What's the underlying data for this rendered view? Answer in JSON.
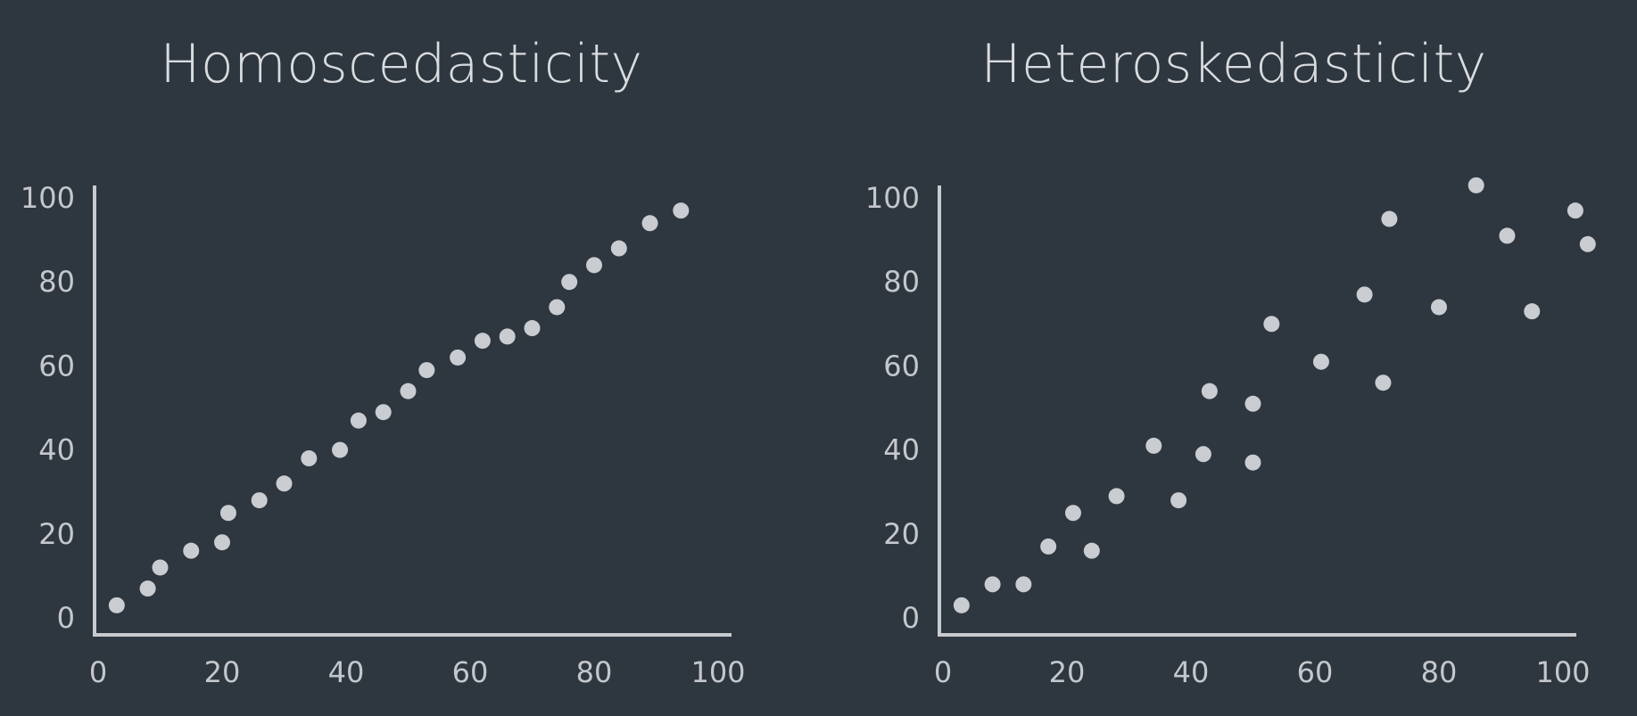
{
  "colors": {
    "background": "#2e3640",
    "axis": "#c8cbce",
    "point": "#c9ccd0",
    "text": "#c4c7cb",
    "title": "#d9dcdf"
  },
  "chart_data": [
    {
      "type": "scatter",
      "title": "Homoscedasticity",
      "xlabel": "",
      "ylabel": "",
      "xlim": [
        0,
        100
      ],
      "ylim": [
        0,
        100
      ],
      "xticks": [
        "0",
        "20",
        "40",
        "60",
        "80",
        "100"
      ],
      "yticks": [
        "0",
        "20",
        "40",
        "60",
        "80",
        "100"
      ],
      "grid": false,
      "points": [
        {
          "x": 3,
          "y": 3
        },
        {
          "x": 8,
          "y": 7
        },
        {
          "x": 10,
          "y": 12
        },
        {
          "x": 15,
          "y": 16
        },
        {
          "x": 20,
          "y": 18
        },
        {
          "x": 21,
          "y": 25
        },
        {
          "x": 26,
          "y": 28
        },
        {
          "x": 30,
          "y": 32
        },
        {
          "x": 34,
          "y": 38
        },
        {
          "x": 39,
          "y": 40
        },
        {
          "x": 42,
          "y": 47
        },
        {
          "x": 46,
          "y": 49
        },
        {
          "x": 50,
          "y": 54
        },
        {
          "x": 53,
          "y": 59
        },
        {
          "x": 58,
          "y": 62
        },
        {
          "x": 62,
          "y": 66
        },
        {
          "x": 66,
          "y": 67
        },
        {
          "x": 70,
          "y": 69
        },
        {
          "x": 74,
          "y": 74
        },
        {
          "x": 76,
          "y": 80
        },
        {
          "x": 80,
          "y": 84
        },
        {
          "x": 84,
          "y": 88
        },
        {
          "x": 89,
          "y": 94
        },
        {
          "x": 94,
          "y": 97
        }
      ]
    },
    {
      "type": "scatter",
      "title": "Heteroskedasticity",
      "xlabel": "",
      "ylabel": "",
      "xlim": [
        0,
        100
      ],
      "ylim": [
        0,
        100
      ],
      "xticks": [
        "0",
        "20",
        "40",
        "60",
        "80",
        "100"
      ],
      "yticks": [
        "0",
        "20",
        "40",
        "60",
        "80",
        "100"
      ],
      "grid": false,
      "points": [
        {
          "x": 3,
          "y": 3
        },
        {
          "x": 8,
          "y": 8
        },
        {
          "x": 13,
          "y": 8
        },
        {
          "x": 17,
          "y": 17
        },
        {
          "x": 21,
          "y": 25
        },
        {
          "x": 24,
          "y": 16
        },
        {
          "x": 28,
          "y": 29
        },
        {
          "x": 34,
          "y": 41
        },
        {
          "x": 38,
          "y": 28
        },
        {
          "x": 42,
          "y": 39
        },
        {
          "x": 43,
          "y": 54
        },
        {
          "x": 50,
          "y": 37
        },
        {
          "x": 50,
          "y": 51
        },
        {
          "x": 53,
          "y": 70
        },
        {
          "x": 61,
          "y": 61
        },
        {
          "x": 68,
          "y": 77
        },
        {
          "x": 71,
          "y": 56
        },
        {
          "x": 72,
          "y": 95
        },
        {
          "x": 80,
          "y": 74
        },
        {
          "x": 86,
          "y": 103
        },
        {
          "x": 91,
          "y": 91
        },
        {
          "x": 95,
          "y": 73
        },
        {
          "x": 102,
          "y": 97
        },
        {
          "x": 104,
          "y": 89
        }
      ]
    }
  ]
}
